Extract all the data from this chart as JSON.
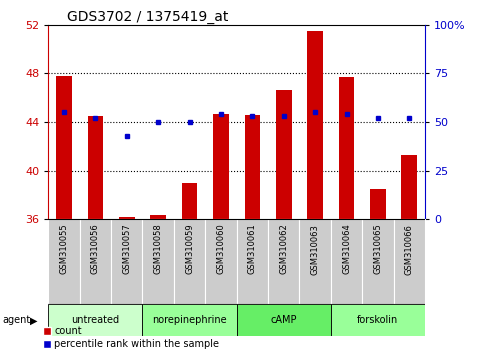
{
  "title": "GDS3702 / 1375419_at",
  "samples": [
    "GSM310055",
    "GSM310056",
    "GSM310057",
    "GSM310058",
    "GSM310059",
    "GSM310060",
    "GSM310061",
    "GSM310062",
    "GSM310063",
    "GSM310064",
    "GSM310065",
    "GSM310066"
  ],
  "counts": [
    47.8,
    44.5,
    36.2,
    36.4,
    39.0,
    44.7,
    44.6,
    46.6,
    51.5,
    47.7,
    38.5,
    41.3
  ],
  "percentile_ranks": [
    55,
    52,
    43,
    50,
    50,
    54,
    53,
    53,
    55,
    54,
    52,
    52
  ],
  "ylim_left": [
    36,
    52
  ],
  "ylim_right": [
    0,
    100
  ],
  "yticks_left": [
    36,
    40,
    44,
    48,
    52
  ],
  "yticks_right": [
    0,
    25,
    50,
    75,
    100
  ],
  "ytick_labels_right": [
    "0",
    "25",
    "50",
    "75",
    "100%"
  ],
  "bar_color": "#cc0000",
  "dot_color": "#0000cc",
  "baseline": 36,
  "agent_groups": [
    {
      "label": "untreated",
      "start": 0,
      "end": 3,
      "color": "#ccffcc"
    },
    {
      "label": "norepinephrine",
      "start": 3,
      "end": 6,
      "color": "#99ff99"
    },
    {
      "label": "cAMP",
      "start": 6,
      "end": 9,
      "color": "#66ee66"
    },
    {
      "label": "forskolin",
      "start": 9,
      "end": 12,
      "color": "#99ff99"
    }
  ],
  "grid_dotted_vals": [
    40,
    44,
    48
  ],
  "xticklabel_bg": "#cccccc",
  "fig_width": 4.83,
  "fig_height": 3.54,
  "dpi": 100
}
